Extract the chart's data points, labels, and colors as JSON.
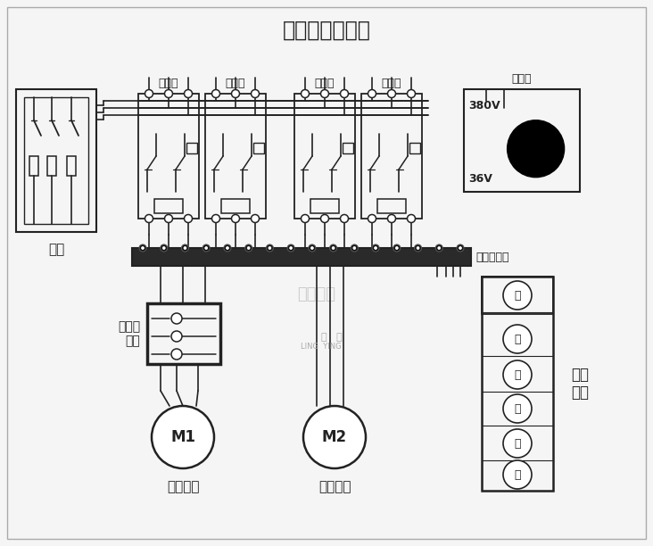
{
  "title": "电动葫芦接线图",
  "bg_color": "#f5f5f5",
  "line_color": "#222222",
  "labels": {
    "contactor": "接触器",
    "transformer": "变压器",
    "voltage_high": "380V",
    "voltage_low": "36V",
    "terminal_strip": "接线端子排",
    "limit_switch": "断火限\n位器",
    "knife_switch": "闸刀",
    "motor1": "M1",
    "motor2": "M2",
    "motor1_label": "升降电机",
    "motor2_label": "行走电机",
    "handle": "操作\n手柄",
    "btn_green": "綠",
    "btn_red": "红",
    "btn_up": "上",
    "btn_down": "下",
    "btn_left": "左",
    "btn_right": "右",
    "watermark": "北京凌鹰"
  },
  "figsize": [
    7.32,
    6.12
  ],
  "dpi": 100
}
